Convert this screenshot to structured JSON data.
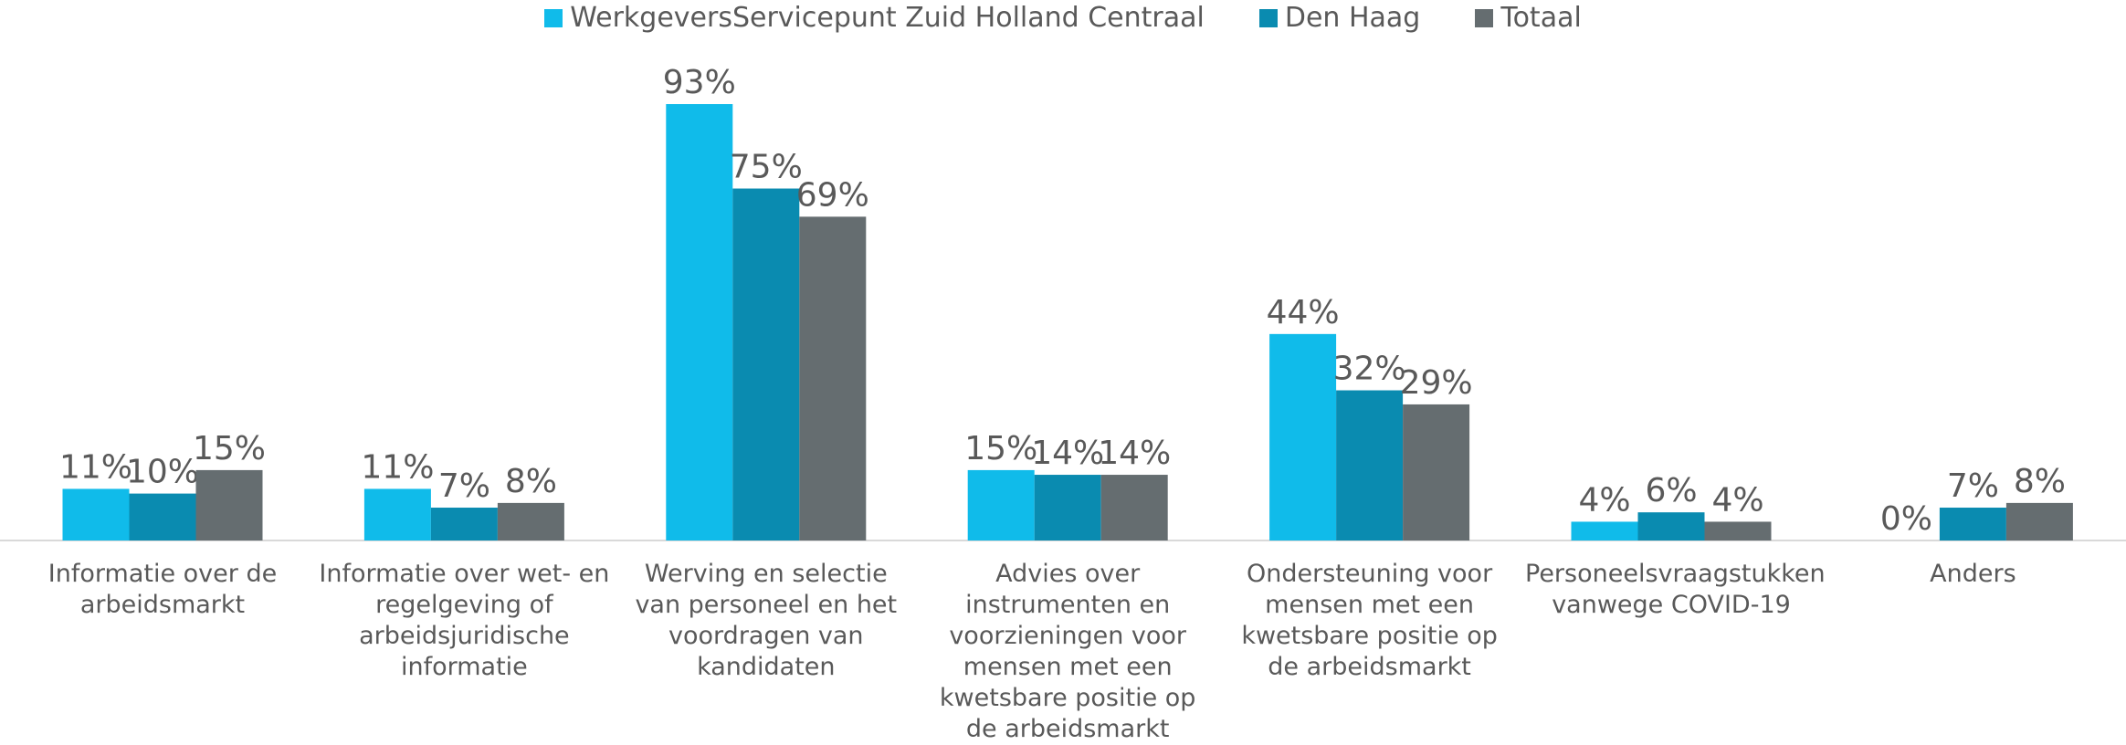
{
  "chart_data": {
    "type": "bar",
    "categories": [
      "Informatie over de arbeidsmarkt",
      "Informatie over wet- en regelgeving of arbeidsjuridische informatie",
      "Werving en selectie van personeel en het voordragen van kandidaten",
      "Advies over instrumenten en voorzieningen voor mensen met een kwetsbare positie op de arbeidsmarkt",
      "Ondersteuning voor mensen met een kwetsbare positie op de arbeidsmarkt",
      "Personeelsvraagstukken vanwege COVID-19",
      "Anders"
    ],
    "series": [
      {
        "name": "WerkgeversServicepunt Zuid Holland Centraal",
        "color": "#10bbea",
        "values": [
          11,
          11,
          93,
          15,
          44,
          4,
          0
        ],
        "value_labels": [
          "11%",
          "11%",
          "93%",
          "15%",
          "44%",
          "4%",
          "0%"
        ]
      },
      {
        "name": "Den Haag",
        "color": "#0a8bb0",
        "values": [
          10,
          7,
          75,
          14,
          32,
          6,
          7
        ],
        "value_labels": [
          "10%",
          "7%",
          "75%",
          "14%",
          "32%",
          "6%",
          "7%"
        ]
      },
      {
        "name": "Totaal",
        "color": "#656d70",
        "values": [
          15,
          8,
          69,
          14,
          29,
          4,
          8
        ],
        "value_labels": [
          "15%",
          "8%",
          "69%",
          "14%",
          "29%",
          "4%",
          "8%"
        ]
      }
    ],
    "legend": "top"
  }
}
